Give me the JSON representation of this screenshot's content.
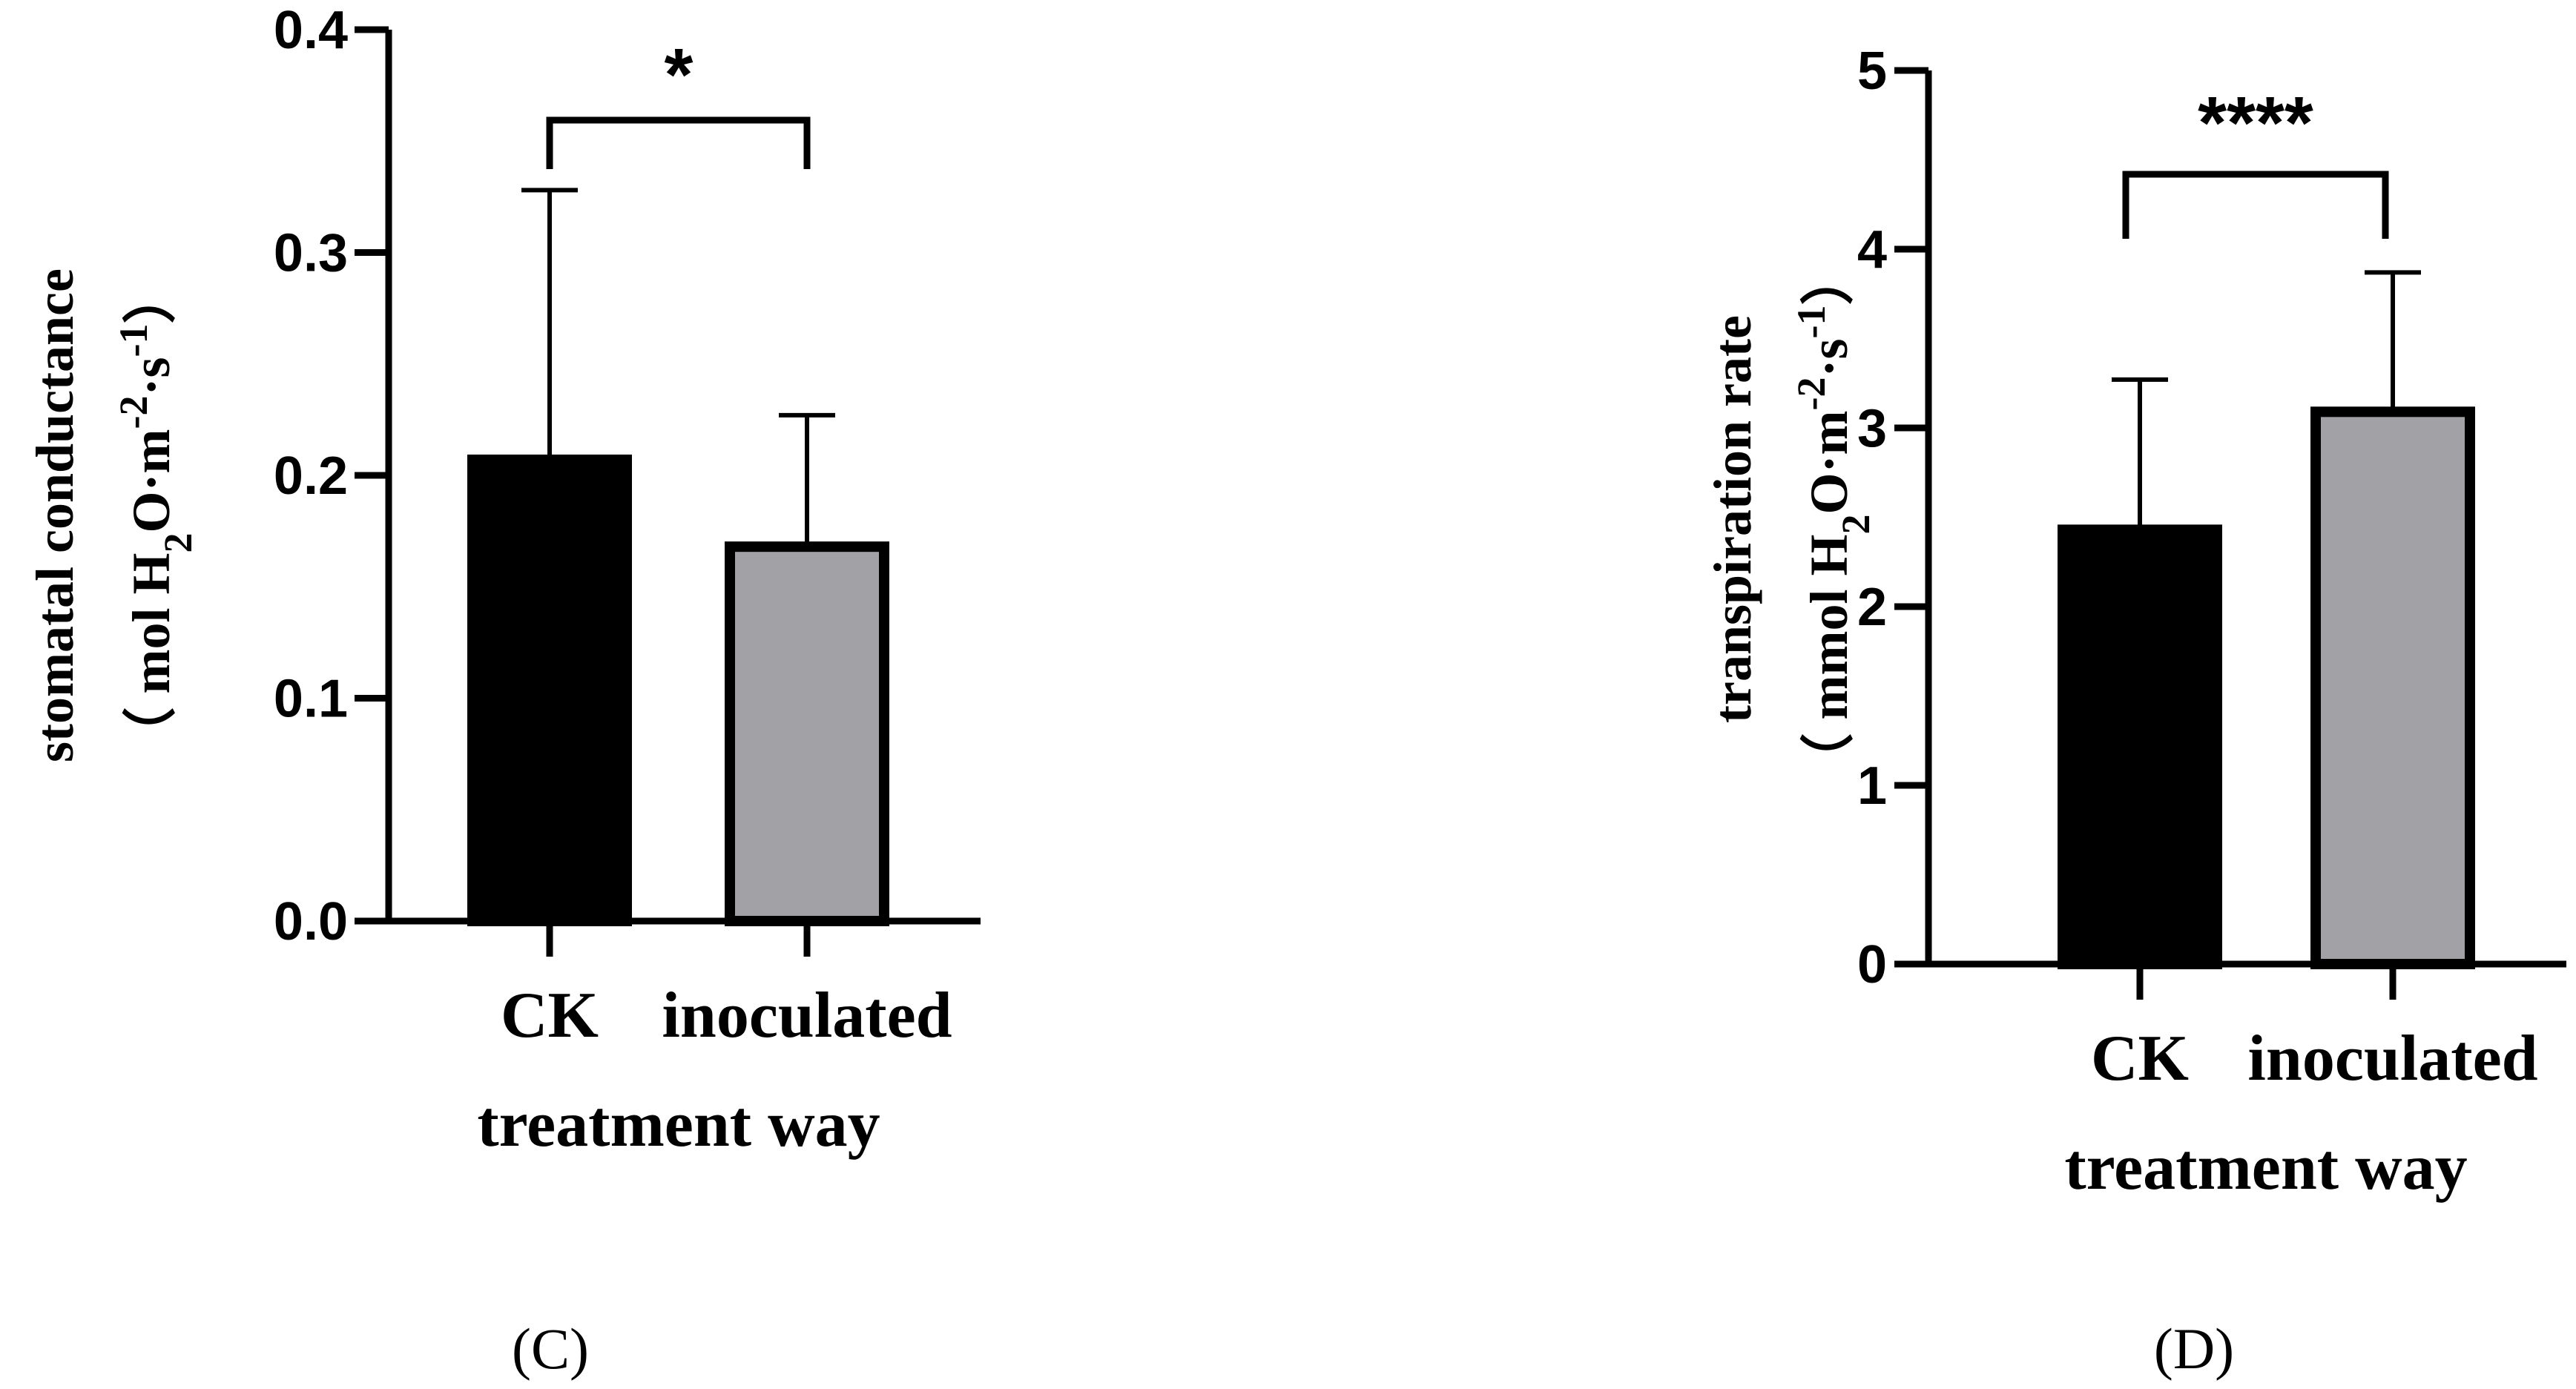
{
  "chart_data": [
    {
      "type": "bar",
      "panel_label": "(C)",
      "categories": [
        "CK",
        "inoculated"
      ],
      "values": [
        0.207,
        0.168
      ],
      "error_upper": [
        0.328,
        0.227
      ],
      "bar_colors": [
        "#000000",
        "#a2a1a6"
      ],
      "ylim": [
        0.0,
        0.4
      ],
      "yticks": [
        "0.0",
        "0.1",
        "0.2",
        "0.3",
        "0.4"
      ],
      "xlabel": "treatment way",
      "ylabel_line1": "stomatal  conductance",
      "ylabel_line2": "（ mol H",
      "ylabel_sub": "2",
      "ylabel_rest": "O·m",
      "ylabel_sup1": "-2",
      "ylabel_mid": "·s",
      "ylabel_sup2": "-1",
      "ylabel_end": "）",
      "significance": "*"
    },
    {
      "type": "bar",
      "panel_label": "(D)",
      "categories": [
        "CK",
        "inoculated"
      ],
      "values": [
        2.43,
        3.09
      ],
      "error_upper": [
        3.27,
        3.87
      ],
      "bar_colors": [
        "#000000",
        "#a2a1a6"
      ],
      "ylim": [
        0,
        5
      ],
      "yticks": [
        "0",
        "1",
        "2",
        "3",
        "4",
        "5"
      ],
      "xlabel": "treatment way",
      "ylabel_line1": "transpiration rate",
      "ylabel_line2": "（ mmol H",
      "ylabel_sub": "2",
      "ylabel_rest": "O·m",
      "ylabel_sup1": "-2",
      "ylabel_mid": "·s",
      "ylabel_sup2": "-1",
      "ylabel_end": "）",
      "significance": "****"
    }
  ]
}
